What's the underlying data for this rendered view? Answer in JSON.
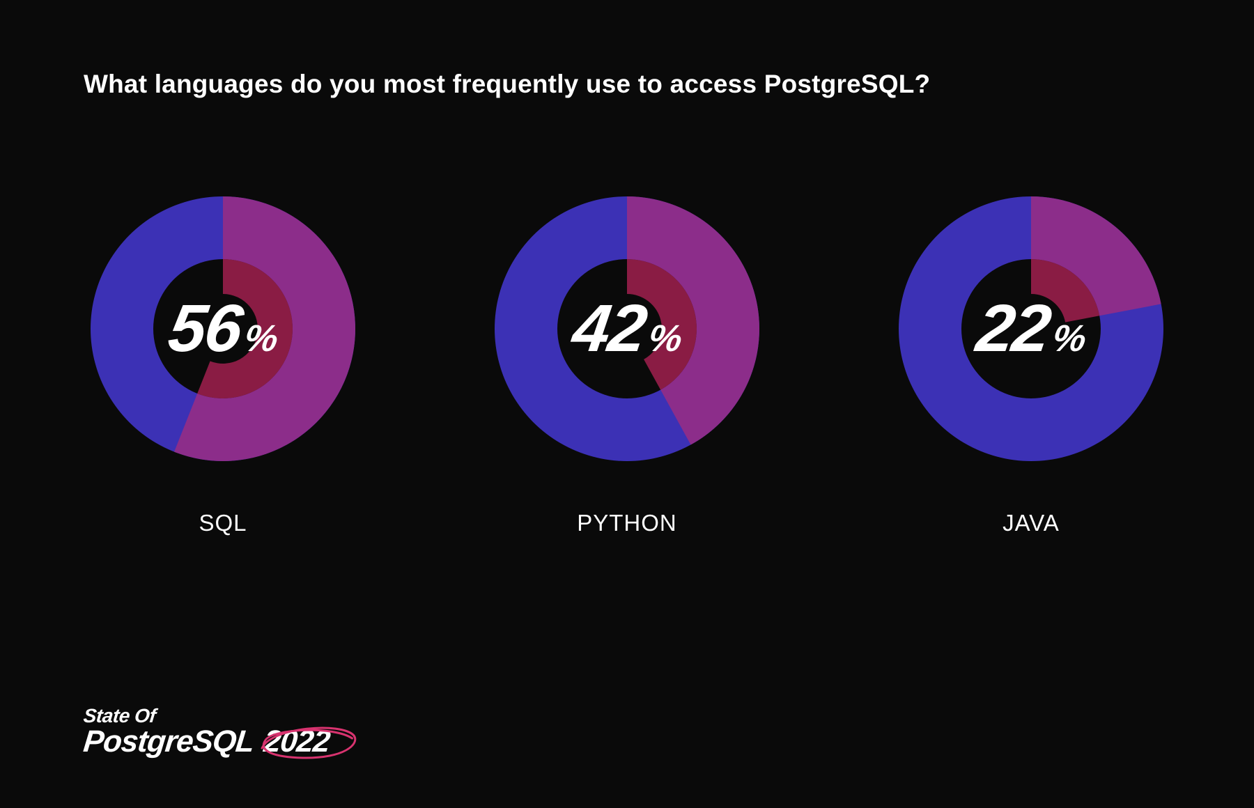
{
  "title": "What languages do you most frequently use to access PostgreSQL?",
  "background_color": "#0a0a0a",
  "text_color": "#ffffff",
  "title_fontsize": 37,
  "label_fontsize": 33,
  "percent_fontsize": 96,
  "donut": {
    "outer_radius": 190,
    "inner_radius": 100,
    "secondary_inner_radius": 50,
    "ring_color": "#3c31b5",
    "slice_color": "#8c2d8a",
    "inner_slice_color": "#8a1c44"
  },
  "items": [
    {
      "label": "SQL",
      "value": 56
    },
    {
      "label": "PYTHON",
      "value": 42
    },
    {
      "label": "JAVA",
      "value": 22
    }
  ],
  "footer": {
    "line1": "State Of",
    "line2_a": "PostgreSQL",
    "line2_b": "2022",
    "scribble_color": "#d8336f"
  }
}
